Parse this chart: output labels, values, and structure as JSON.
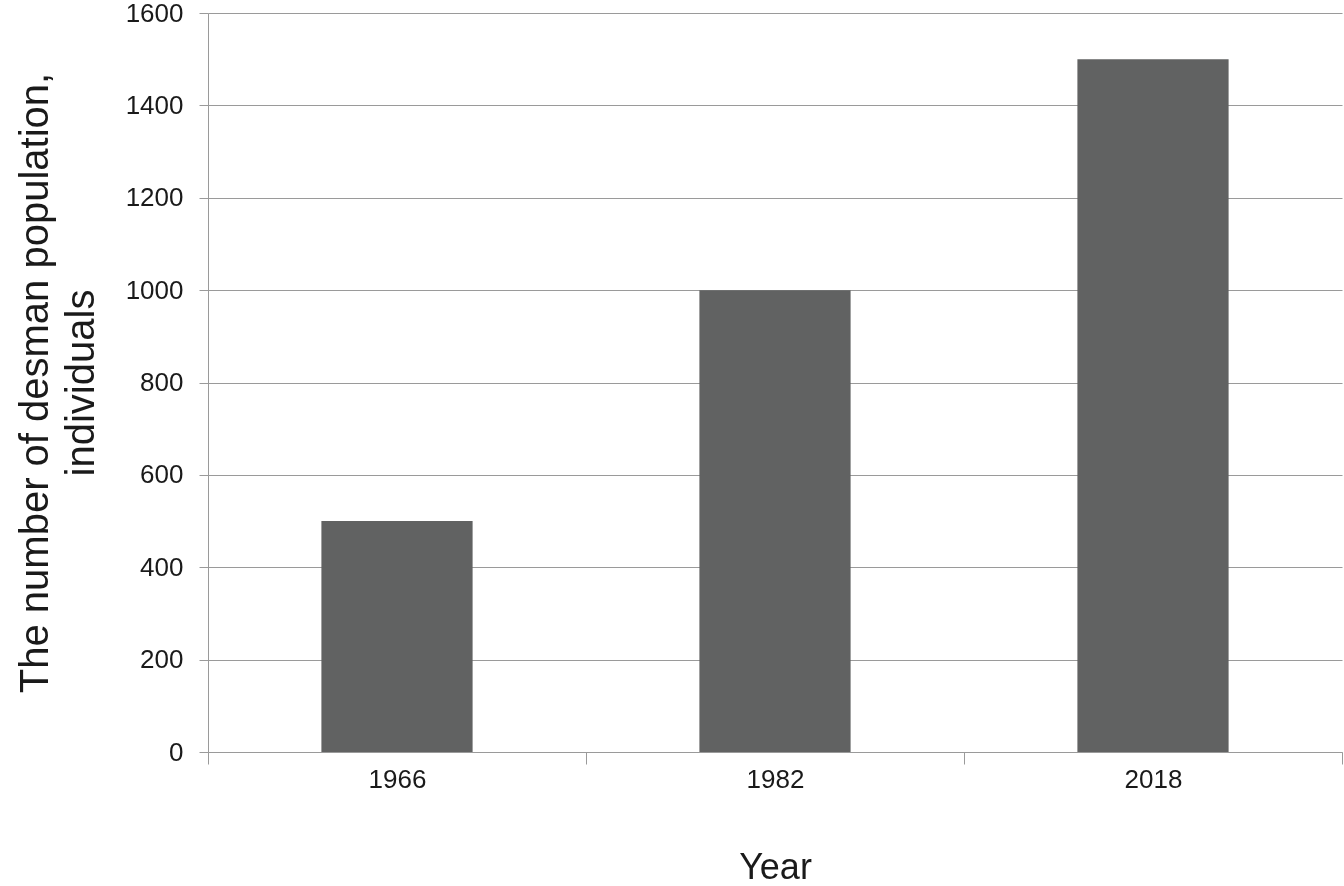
{
  "chart_data": {
    "type": "bar",
    "xlabel": "Year",
    "ylabel": "The number of desman population, individuals",
    "categories": [
      "1966",
      "1982",
      "2018"
    ],
    "values": [
      500,
      1000,
      1500
    ],
    "color": "#616262",
    "ylim": [
      0,
      1600
    ],
    "yticks": [
      0,
      200,
      400,
      600,
      800,
      1000,
      1200,
      1400,
      1600
    ],
    "grid": "y"
  }
}
